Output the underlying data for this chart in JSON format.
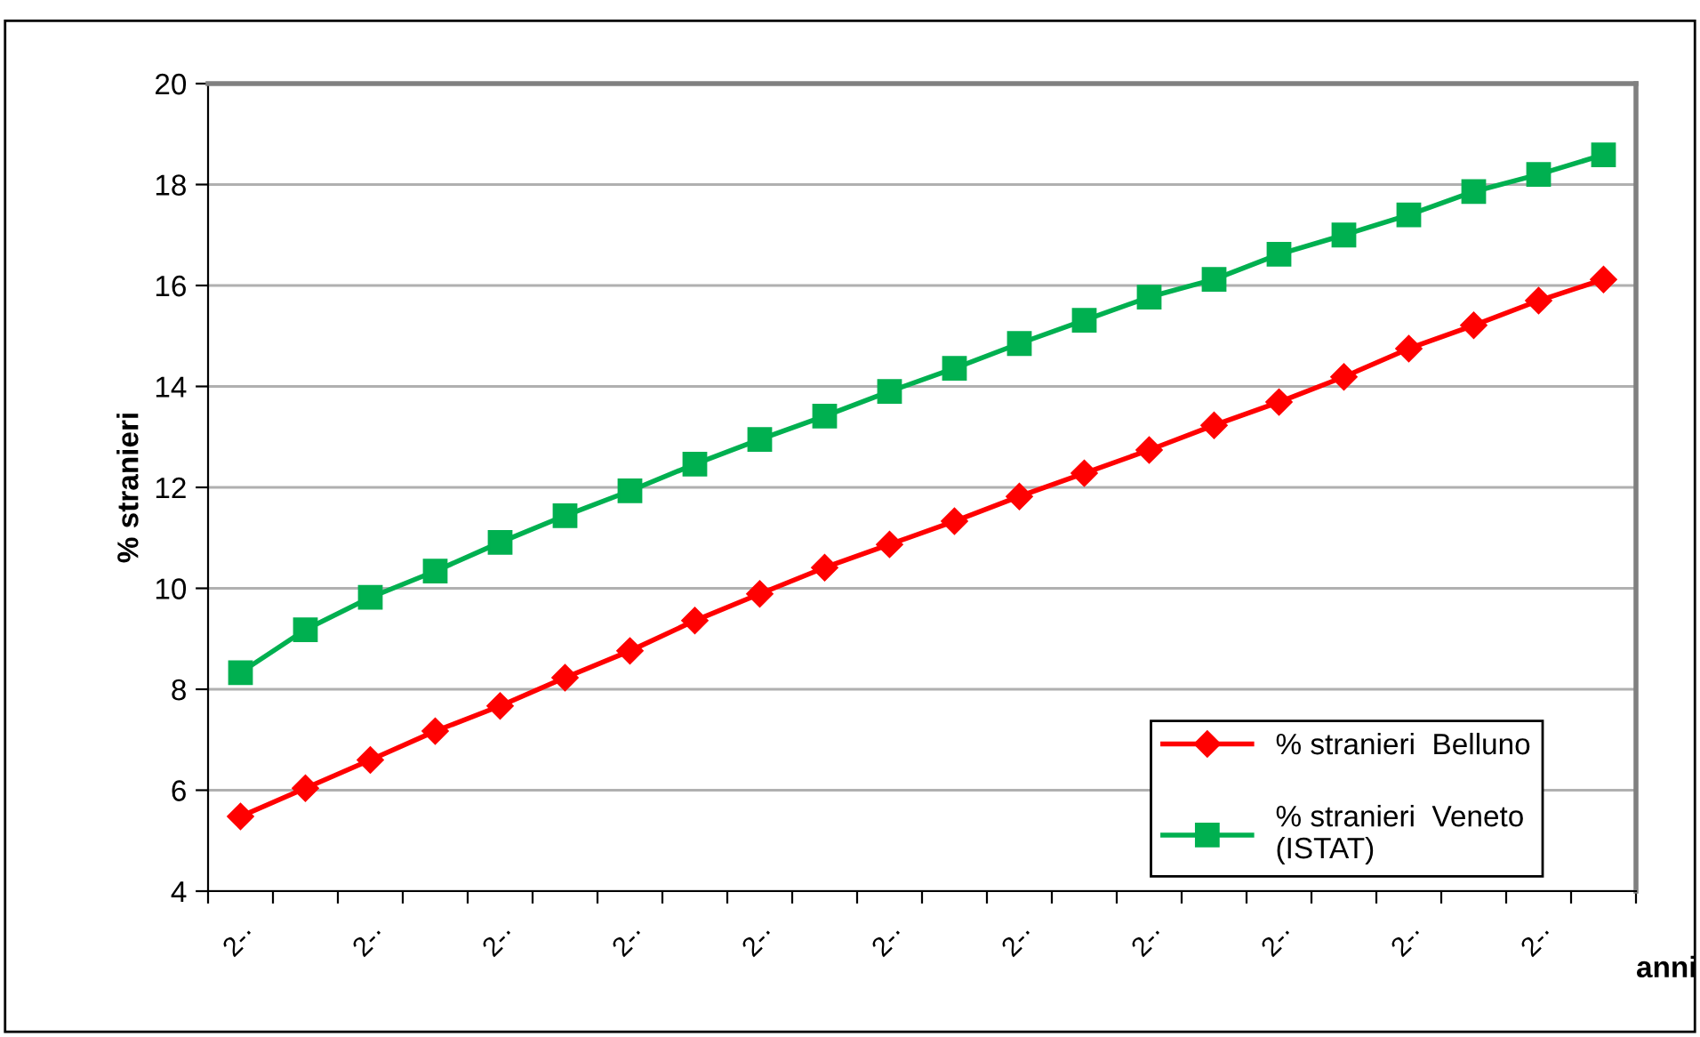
{
  "chart_data": {
    "type": "line",
    "xlabel": "anni",
    "ylabel": "% stranieri",
    "categories": [
      "2-·",
      null,
      "2-·",
      null,
      "2-·",
      null,
      "2-·",
      null,
      "2-·",
      null,
      "2-·",
      null,
      "2-·",
      null,
      "2-·",
      null,
      "2-·",
      null,
      "2-·",
      null,
      "2-·",
      null
    ],
    "series": [
      {
        "name": "% stranieri  Belluno",
        "color": "#ff0000",
        "marker": "diamond",
        "values": [
          5.48,
          6.04,
          6.6,
          7.17,
          7.67,
          8.23,
          8.76,
          9.36,
          9.89,
          10.41,
          10.87,
          11.33,
          11.82,
          12.28,
          12.74,
          13.23,
          13.69,
          14.19,
          14.75,
          15.21,
          15.7,
          16.12
        ]
      },
      {
        "name": "% stranieri  Veneto\n(ISTAT)",
        "color": "#00b050",
        "marker": "square",
        "values": [
          8.33,
          9.18,
          9.82,
          10.34,
          10.91,
          11.44,
          11.93,
          12.46,
          12.95,
          13.41,
          13.9,
          14.36,
          14.85,
          15.31,
          15.77,
          16.12,
          16.62,
          17.0,
          17.4,
          17.86,
          18.2,
          18.59
        ]
      }
    ],
    "ylim": [
      4,
      20
    ],
    "yticks": [
      4,
      6,
      8,
      10,
      12,
      14,
      16,
      18,
      20
    ],
    "grid": "y",
    "legend": "bottom right",
    "line_style": "solid"
  }
}
